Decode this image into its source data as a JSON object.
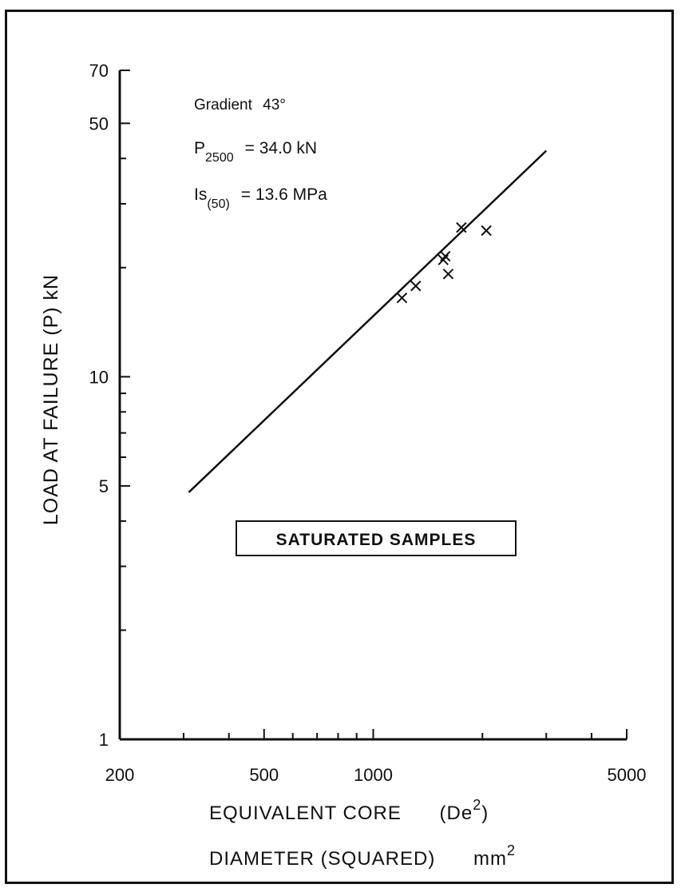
{
  "chart_data": {
    "type": "scatter",
    "x_scale": "log",
    "y_scale": "log",
    "xlim": [
      200,
      5000
    ],
    "ylim": [
      1,
      70
    ],
    "x_ticks_labeled": [
      200,
      500,
      1000,
      5000
    ],
    "x_tick_labels": [
      "200",
      "500",
      "1000",
      "5000"
    ],
    "x_ticks_minor": [
      300,
      400,
      600,
      700,
      800,
      900,
      2000,
      3000,
      4000
    ],
    "y_ticks_labeled": [
      1,
      5,
      10,
      50,
      70
    ],
    "y_tick_labels": [
      "1",
      "5",
      "10",
      "50",
      "70"
    ],
    "y_ticks_minor": [
      2,
      3,
      4,
      6,
      7,
      8,
      9,
      20,
      30,
      40
    ],
    "ylabel": "LOAD AT FAILURE (P) kN",
    "xlabel_line1": "EQUIVALENT CORE",
    "xlabel_line1_symbol": "(De",
    "xlabel_line1_sup": "2",
    "xlabel_line1_close": ")",
    "xlabel_line2": "DIAMETER (SQUARED)",
    "xlabel_line2_unit": "mm",
    "xlabel_line2_sup": "2",
    "points": [
      {
        "x": 1200,
        "y": 16.5
      },
      {
        "x": 1310,
        "y": 17.8
      },
      {
        "x": 1560,
        "y": 21.0
      },
      {
        "x": 1580,
        "y": 21.5
      },
      {
        "x": 1610,
        "y": 19.2
      },
      {
        "x": 1750,
        "y": 25.8
      },
      {
        "x": 2050,
        "y": 25.3
      }
    ],
    "fit_line": {
      "x": [
        310,
        3000
      ],
      "y": [
        4.8,
        42.0
      ]
    },
    "annotations": {
      "gradient_prefix": "Gradient",
      "gradient_value": "43°",
      "p_symbol": "P",
      "p_subscript": "2500",
      "p_value": "=  34.0 kN",
      "is_symbol": "Is",
      "is_subscript": "(50)",
      "is_value": "=  13.6 MPa"
    },
    "box_label": "SATURATED SAMPLES",
    "grid": false
  }
}
